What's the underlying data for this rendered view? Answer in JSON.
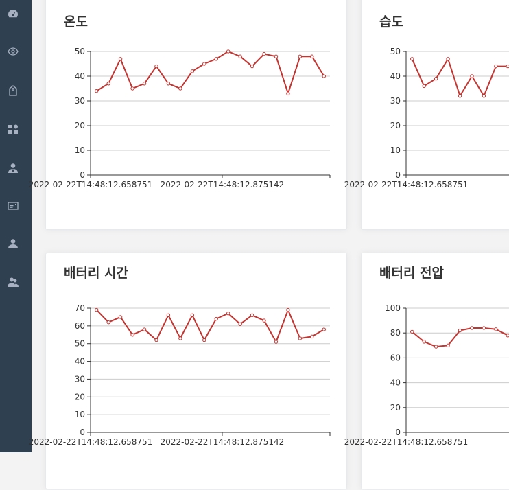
{
  "sidebar": {
    "items": [
      {
        "icon": "dashboard-gauge-icon"
      },
      {
        "icon": "eye-icon"
      },
      {
        "icon": "tag-icon"
      },
      {
        "icon": "grid-icon"
      },
      {
        "icon": "user-tie-icon"
      },
      {
        "icon": "id-card-icon"
      },
      {
        "icon": "user-icon"
      },
      {
        "icon": "users-icon"
      }
    ],
    "background": "#2f4050"
  },
  "cards": [
    {
      "title": "온도"
    },
    {
      "title": "습도"
    },
    {
      "title": "배터리 시간"
    },
    {
      "title": "배터리 전압"
    }
  ],
  "colors": {
    "line": "#c23531",
    "grid": "#cccccc",
    "axis": "#333333"
  },
  "chart_data": [
    {
      "type": "line",
      "title": "온도",
      "x_tick_labels": [
        "2022-02-22T14:48:12.658751",
        "2022-02-22T14:48:12.875142"
      ],
      "ylim": [
        0,
        50
      ],
      "yticks": [
        0,
        10,
        20,
        30,
        40,
        50
      ],
      "series": [
        {
          "name": "온도",
          "values": [
            34,
            37,
            47,
            35,
            37,
            44,
            37,
            35,
            42,
            45,
            47,
            50,
            48,
            44,
            49,
            48,
            33,
            48,
            48,
            40
          ]
        }
      ],
      "grid": true
    },
    {
      "type": "line",
      "title": "습도",
      "x_tick_labels": [
        "2022-02-22T14:48:12.658751"
      ],
      "ylim": [
        0,
        50
      ],
      "yticks": [
        0,
        10,
        20,
        30,
        40,
        50
      ],
      "series": [
        {
          "name": "습도",
          "values": [
            47,
            36,
            39,
            47,
            32,
            40,
            32,
            44,
            44
          ]
        }
      ],
      "grid": true
    },
    {
      "type": "line",
      "title": "배터리 시간",
      "x_tick_labels": [
        "2022-02-22T14:48:12.658751",
        "2022-02-22T14:48:12.875142"
      ],
      "ylim": [
        0,
        70
      ],
      "yticks": [
        0,
        10,
        20,
        30,
        40,
        50,
        60,
        70
      ],
      "series": [
        {
          "name": "배터리 시간",
          "values": [
            69,
            62,
            65,
            55,
            58,
            52,
            66,
            53,
            66,
            52,
            64,
            67,
            61,
            66,
            63,
            51,
            69,
            53,
            54,
            58
          ]
        }
      ],
      "grid": true
    },
    {
      "type": "line",
      "title": "배터리 전압",
      "x_tick_labels": [
        "2022-02-22T14:48:12.658751"
      ],
      "ylim": [
        0,
        100
      ],
      "yticks": [
        0,
        20,
        40,
        60,
        80,
        100
      ],
      "series": [
        {
          "name": "배터리 전압",
          "values": [
            81,
            73,
            69,
            70,
            82,
            84,
            84,
            83,
            78
          ]
        }
      ],
      "grid": true
    }
  ]
}
